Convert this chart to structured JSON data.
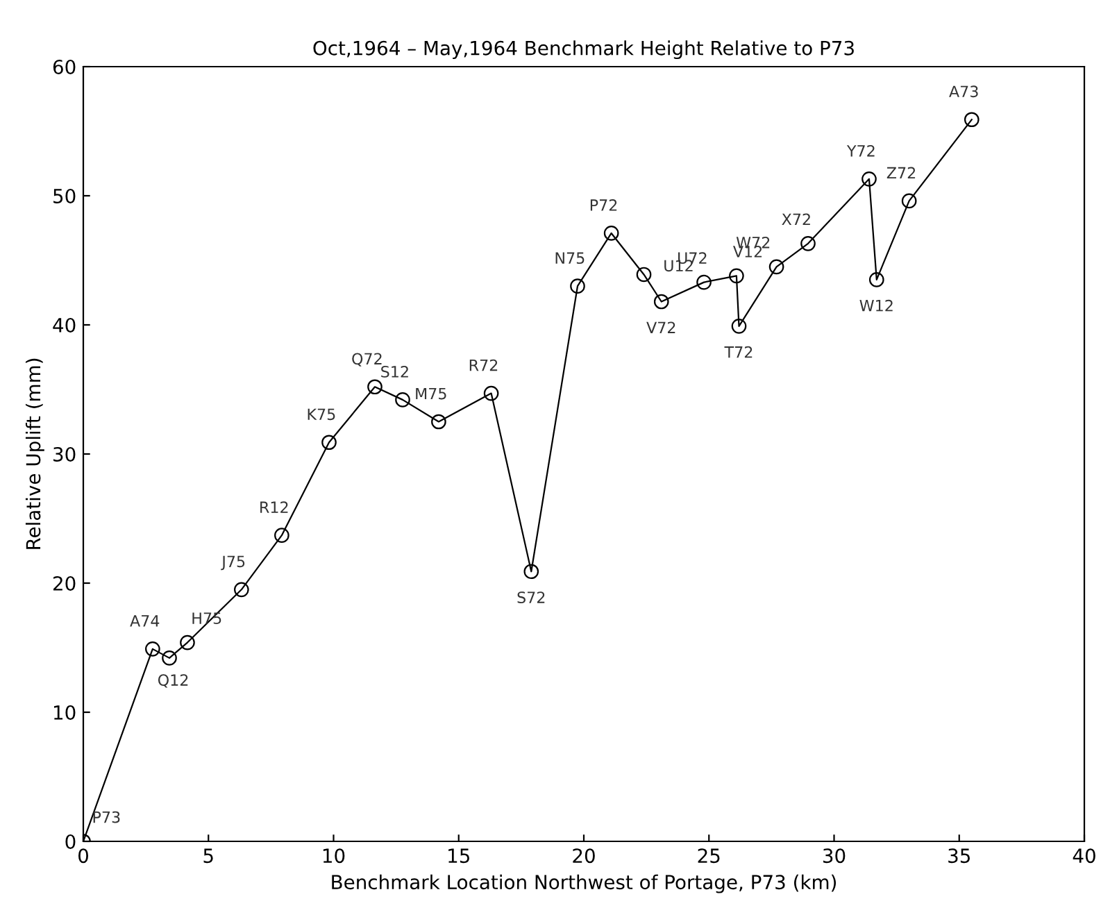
{
  "chart_data": {
    "type": "line",
    "title": "Oct,1964 – May,1964 Benchmark Height Relative to P73",
    "xlabel": "Benchmark Location Northwest of Portage, P73 (km)",
    "ylabel": "Relative Uplift (mm)",
    "x": [
      0,
      2.77,
      3.44,
      4.16,
      6.32,
      7.93,
      9.82,
      11.65,
      12.76,
      14.2,
      16.3,
      17.9,
      19.75,
      21.1,
      22.4,
      23.1,
      24.8,
      26.1,
      26.2,
      27.7,
      28.96,
      31.4,
      31.7,
      33.0,
      35.5
    ],
    "series": [
      {
        "color": "#000000",
        "values": [
          0,
          14.9,
          14.2,
          15.4,
          19.5,
          23.7,
          30.9,
          35.2,
          34.2,
          32.5,
          34.7,
          20.9,
          43.0,
          47.1,
          43.9,
          41.8,
          43.3,
          43.8,
          39.9,
          44.5,
          46.3,
          51.3,
          43.5,
          49.6,
          55.9
        ]
      }
    ],
    "marker": "circle",
    "line_style": "solid",
    "grid": false,
    "legend": false,
    "xlim": [
      0,
      40
    ],
    "ylim": [
      0,
      60
    ],
    "xticks": [
      0,
      5,
      10,
      15,
      20,
      25,
      30,
      35,
      40
    ],
    "yticks": [
      0,
      10,
      20,
      30,
      40,
      50,
      60
    ],
    "annotations": [
      {
        "text": "P73",
        "x": 0,
        "y": 0
      },
      {
        "text": "A74",
        "x": 2.77,
        "y": 14.9
      },
      {
        "text": "Q12",
        "x": 3.44,
        "y": 14.2
      },
      {
        "text": "H75",
        "x": 4.16,
        "y": 15.4
      },
      {
        "text": "J75",
        "x": 6.32,
        "y": 19.5
      },
      {
        "text": "R12",
        "x": 7.93,
        "y": 23.7
      },
      {
        "text": "K75",
        "x": 9.82,
        "y": 30.9
      },
      {
        "text": "Q72",
        "x": 11.65,
        "y": 35.2
      },
      {
        "text": "S12",
        "x": 12.76,
        "y": 34.2
      },
      {
        "text": "M75",
        "x": 14.2,
        "y": 32.5
      },
      {
        "text": "R72",
        "x": 16.3,
        "y": 34.7
      },
      {
        "text": "S72",
        "x": 17.9,
        "y": 20.9
      },
      {
        "text": "N75",
        "x": 19.75,
        "y": 43.0
      },
      {
        "text": "P72",
        "x": 21.1,
        "y": 47.1
      },
      {
        "text": "U12",
        "x": 22.4,
        "y": 43.9
      },
      {
        "text": "V72",
        "x": 23.1,
        "y": 41.8
      },
      {
        "text": "U72",
        "x": 24.8,
        "y": 43.3
      },
      {
        "text": "V12",
        "x": 26.1,
        "y": 43.8
      },
      {
        "text": "T72",
        "x": 26.2,
        "y": 39.9
      },
      {
        "text": "W72",
        "x": 27.7,
        "y": 44.5
      },
      {
        "text": "X72",
        "x": 28.96,
        "y": 46.3
      },
      {
        "text": "Y72",
        "x": 31.4,
        "y": 51.3
      },
      {
        "text": "W12",
        "x": 31.7,
        "y": 43.5
      },
      {
        "text": "Z72",
        "x": 33.0,
        "y": 49.6
      },
      {
        "text": "A73",
        "x": 35.5,
        "y": 55.9
      }
    ]
  }
}
